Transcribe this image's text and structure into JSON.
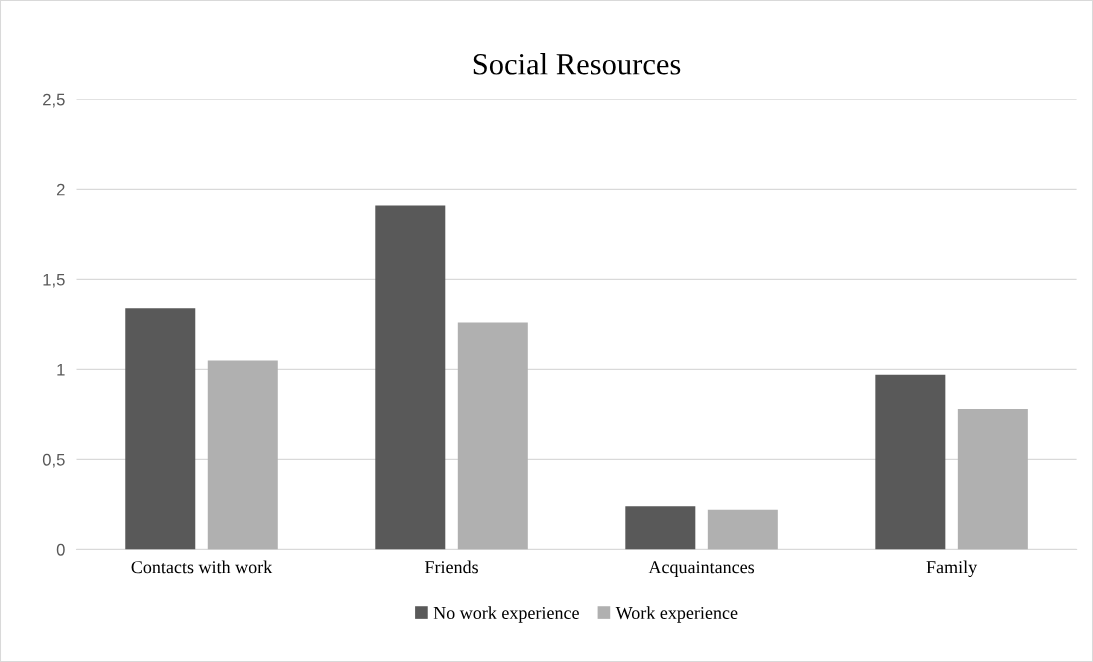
{
  "chart_data": {
    "type": "bar",
    "title": "Social Resources",
    "categories": [
      "Contacts with work",
      "Friends",
      "Acquaintances",
      "Family"
    ],
    "series": [
      {
        "name": "No work experience",
        "color": "#595959",
        "values": [
          1.34,
          1.91,
          0.24,
          0.97
        ]
      },
      {
        "name": "Work experience",
        "color": "#b0b0b0",
        "values": [
          1.05,
          1.26,
          0.22,
          0.78
        ]
      }
    ],
    "ylim": [
      0,
      2.5
    ],
    "yticks": [
      {
        "value": 0,
        "label": "0"
      },
      {
        "value": 0.5,
        "label": "0,5"
      },
      {
        "value": 1,
        "label": "1"
      },
      {
        "value": 1.5,
        "label": "1,5"
      },
      {
        "value": 2,
        "label": "2"
      },
      {
        "value": 2.5,
        "label": "2,5"
      }
    ],
    "grid": "y",
    "legend": "bottom"
  }
}
